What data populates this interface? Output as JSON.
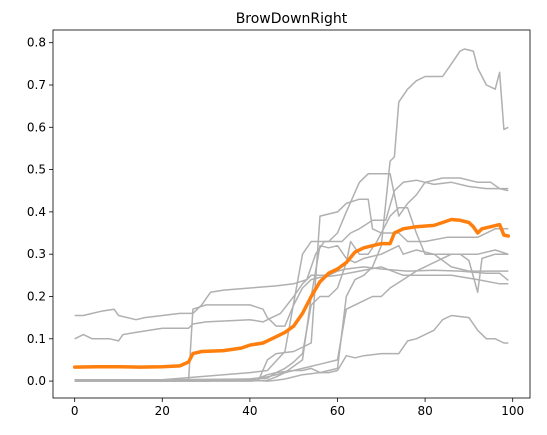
{
  "chart_data": {
    "type": "line",
    "title": "BrowDownRight",
    "xlabel": "",
    "ylabel": "",
    "xlim": [
      -4.95,
      103.95
    ],
    "ylim": [
      -0.04,
      0.83
    ],
    "xticks": [
      0,
      20,
      40,
      60,
      80,
      100
    ],
    "yticks": [
      0.0,
      0.1,
      0.2,
      0.3,
      0.4,
      0.5,
      0.6,
      0.7,
      0.8
    ],
    "grid": false,
    "legend": "none",
    "background_series_color": "#b0b0b0",
    "mean_series_color": "#ff7f0e",
    "background_series": [
      {
        "points": [
          [
            0,
            0.155
          ],
          [
            2,
            0.155
          ],
          [
            4,
            0.16
          ],
          [
            6,
            0.165
          ],
          [
            9,
            0.17
          ],
          [
            10,
            0.155
          ],
          [
            14,
            0.145
          ],
          [
            16,
            0.15
          ],
          [
            20,
            0.155
          ],
          [
            24,
            0.16
          ],
          [
            27,
            0.16
          ],
          [
            29,
            0.18
          ],
          [
            31,
            0.21
          ],
          [
            34,
            0.215
          ],
          [
            40,
            0.22
          ],
          [
            46,
            0.225
          ],
          [
            50,
            0.23
          ],
          [
            53,
            0.24
          ],
          [
            55,
            0.3
          ],
          [
            57,
            0.33
          ],
          [
            59,
            0.33
          ],
          [
            61,
            0.33
          ],
          [
            63,
            0.35
          ],
          [
            65,
            0.36
          ],
          [
            68,
            0.38
          ],
          [
            71,
            0.38
          ],
          [
            73,
            0.45
          ],
          [
            75,
            0.47
          ],
          [
            78,
            0.475
          ],
          [
            82,
            0.465
          ],
          [
            86,
            0.47
          ],
          [
            90,
            0.46
          ],
          [
            94,
            0.455
          ],
          [
            97,
            0.455
          ],
          [
            99,
            0.455
          ]
        ]
      },
      {
        "points": [
          [
            0,
            0.1
          ],
          [
            2,
            0.11
          ],
          [
            4,
            0.1
          ],
          [
            8,
            0.1
          ],
          [
            10,
            0.095
          ],
          [
            11,
            0.11
          ],
          [
            14,
            0.115
          ],
          [
            20,
            0.125
          ],
          [
            26,
            0.125
          ],
          [
            27,
            0.135
          ],
          [
            30,
            0.14
          ],
          [
            40,
            0.145
          ],
          [
            43,
            0.14
          ],
          [
            45,
            0.15
          ],
          [
            47,
            0.16
          ],
          [
            50,
            0.2
          ],
          [
            52,
            0.23
          ],
          [
            54,
            0.25
          ],
          [
            58,
            0.25
          ],
          [
            60,
            0.26
          ],
          [
            62,
            0.265
          ],
          [
            66,
            0.27
          ],
          [
            70,
            0.265
          ],
          [
            76,
            0.26
          ],
          [
            82,
            0.262
          ],
          [
            88,
            0.26
          ],
          [
            94,
            0.255
          ],
          [
            97,
            0.255
          ],
          [
            99,
            0.238
          ]
        ]
      },
      {
        "points": [
          [
            0,
            0.003
          ],
          [
            10,
            0.002
          ],
          [
            20,
            0.002
          ],
          [
            26,
            0.002
          ],
          [
            27,
            0.17
          ],
          [
            30,
            0.18
          ],
          [
            40,
            0.18
          ],
          [
            43,
            0.17
          ],
          [
            44,
            0.15
          ],
          [
            46,
            0.13
          ],
          [
            48,
            0.13
          ],
          [
            50,
            0.18
          ],
          [
            52,
            0.22
          ],
          [
            54,
            0.24
          ],
          [
            56,
            0.245
          ],
          [
            60,
            0.25
          ],
          [
            65,
            0.26
          ],
          [
            70,
            0.27
          ],
          [
            75,
            0.25
          ],
          [
            80,
            0.25
          ],
          [
            86,
            0.25
          ],
          [
            92,
            0.24
          ],
          [
            97,
            0.23
          ],
          [
            99,
            0.23
          ]
        ]
      },
      {
        "points": [
          [
            0,
            0.002
          ],
          [
            20,
            0.002
          ],
          [
            40,
            0.002
          ],
          [
            42,
            0.002
          ],
          [
            44,
            0.05
          ],
          [
            46,
            0.065
          ],
          [
            50,
            0.07
          ],
          [
            54,
            0.09
          ],
          [
            56,
            0.39
          ],
          [
            58,
            0.395
          ],
          [
            60,
            0.4
          ],
          [
            62,
            0.42
          ],
          [
            65,
            0.43
          ],
          [
            67,
            0.43
          ],
          [
            68,
            0.36
          ],
          [
            70,
            0.35
          ],
          [
            72,
            0.35
          ],
          [
            74,
            0.35
          ],
          [
            76,
            0.33
          ],
          [
            80,
            0.33
          ],
          [
            85,
            0.34
          ],
          [
            88,
            0.34
          ],
          [
            92,
            0.34
          ],
          [
            96,
            0.36
          ],
          [
            99,
            0.36
          ]
        ]
      },
      {
        "points": [
          [
            0,
            0.0
          ],
          [
            20,
            0.0
          ],
          [
            40,
            0.0
          ],
          [
            44,
            0.002
          ],
          [
            46,
            0.01
          ],
          [
            48,
            0.02
          ],
          [
            52,
            0.05
          ],
          [
            54,
            0.2
          ],
          [
            56,
            0.32
          ],
          [
            58,
            0.315
          ],
          [
            60,
            0.32
          ],
          [
            62,
            0.29
          ],
          [
            64,
            0.28
          ],
          [
            66,
            0.29
          ],
          [
            70,
            0.3
          ],
          [
            74,
            0.32
          ],
          [
            75,
            0.3
          ],
          [
            78,
            0.31
          ],
          [
            82,
            0.3
          ],
          [
            86,
            0.27
          ],
          [
            90,
            0.26
          ],
          [
            94,
            0.26
          ],
          [
            99,
            0.26
          ]
        ]
      },
      {
        "points": [
          [
            0,
            0.0
          ],
          [
            20,
            0.0
          ],
          [
            30,
            0.0
          ],
          [
            40,
            0.005
          ],
          [
            44,
            0.01
          ],
          [
            48,
            0.02
          ],
          [
            52,
            0.03
          ],
          [
            56,
            0.04
          ],
          [
            60,
            0.05
          ],
          [
            62,
            0.17
          ],
          [
            66,
            0.19
          ],
          [
            68,
            0.2
          ],
          [
            70,
            0.2
          ],
          [
            72,
            0.22
          ],
          [
            75,
            0.24
          ],
          [
            78,
            0.26
          ],
          [
            82,
            0.28
          ],
          [
            86,
            0.3
          ],
          [
            88,
            0.3
          ],
          [
            90,
            0.285
          ],
          [
            92,
            0.21
          ],
          [
            93,
            0.29
          ],
          [
            96,
            0.3
          ],
          [
            99,
            0.3
          ]
        ]
      },
      {
        "points": [
          [
            0,
            0.003
          ],
          [
            20,
            0.003
          ],
          [
            40,
            0.02
          ],
          [
            44,
            0.025
          ],
          [
            48,
            0.07
          ],
          [
            52,
            0.3
          ],
          [
            54,
            0.33
          ],
          [
            58,
            0.33
          ],
          [
            60,
            0.35
          ],
          [
            62,
            0.4
          ],
          [
            65,
            0.47
          ],
          [
            67,
            0.49
          ],
          [
            70,
            0.49
          ],
          [
            72,
            0.49
          ],
          [
            74,
            0.39
          ],
          [
            76,
            0.42
          ],
          [
            78,
            0.44
          ],
          [
            80,
            0.47
          ],
          [
            84,
            0.48
          ],
          [
            88,
            0.48
          ],
          [
            92,
            0.47
          ],
          [
            95,
            0.47
          ],
          [
            97,
            0.455
          ],
          [
            99,
            0.45
          ]
        ]
      },
      {
        "points": [
          [
            0,
            0.003
          ],
          [
            20,
            0.003
          ],
          [
            26,
            0.003
          ],
          [
            30,
            0.003
          ],
          [
            40,
            0.005
          ],
          [
            44,
            0.007
          ],
          [
            46,
            0.02
          ],
          [
            48,
            0.03
          ],
          [
            50,
            0.045
          ],
          [
            52,
            0.065
          ],
          [
            54,
            0.18
          ],
          [
            56,
            0.2
          ],
          [
            58,
            0.2
          ],
          [
            60,
            0.22
          ],
          [
            62,
            0.28
          ],
          [
            63,
            0.33
          ],
          [
            65,
            0.3
          ],
          [
            67,
            0.3
          ],
          [
            69,
            0.33
          ],
          [
            72,
            0.39
          ],
          [
            74,
            0.41
          ],
          [
            76,
            0.41
          ],
          [
            78,
            0.35
          ],
          [
            80,
            0.3
          ],
          [
            84,
            0.3
          ],
          [
            88,
            0.3
          ],
          [
            92,
            0.3
          ],
          [
            96,
            0.31
          ],
          [
            99,
            0.3
          ]
        ]
      },
      {
        "points": [
          [
            0,
            0.003
          ],
          [
            20,
            0.003
          ],
          [
            40,
            0.005
          ],
          [
            42,
            0.007
          ],
          [
            44,
            0.015
          ],
          [
            46,
            0.02
          ],
          [
            50,
            0.025
          ],
          [
            52,
            0.025
          ],
          [
            54,
            0.03
          ],
          [
            56,
            0.02
          ],
          [
            58,
            0.02
          ],
          [
            60,
            0.025
          ],
          [
            62,
            0.06
          ],
          [
            64,
            0.055
          ],
          [
            66,
            0.06
          ],
          [
            70,
            0.065
          ],
          [
            74,
            0.065
          ],
          [
            76,
            0.095
          ],
          [
            78,
            0.1
          ],
          [
            80,
            0.11
          ],
          [
            82,
            0.12
          ],
          [
            84,
            0.145
          ],
          [
            86,
            0.155
          ],
          [
            90,
            0.15
          ],
          [
            92,
            0.12
          ],
          [
            94,
            0.1
          ],
          [
            96,
            0.1
          ],
          [
            98,
            0.09
          ],
          [
            99,
            0.09
          ]
        ]
      },
      {
        "points": [
          [
            0,
            0.003
          ],
          [
            20,
            0.002
          ],
          [
            40,
            0.002
          ],
          [
            44,
            0.0
          ],
          [
            46,
            0.002
          ],
          [
            48,
            0.005
          ],
          [
            50,
            0.01
          ],
          [
            52,
            0.015
          ],
          [
            56,
            0.02
          ],
          [
            60,
            0.03
          ],
          [
            62,
            0.2
          ],
          [
            64,
            0.24
          ],
          [
            66,
            0.25
          ],
          [
            68,
            0.27
          ],
          [
            70,
            0.32
          ],
          [
            72,
            0.52
          ],
          [
            73,
            0.53
          ],
          [
            74,
            0.66
          ],
          [
            76,
            0.69
          ],
          [
            78,
            0.71
          ],
          [
            80,
            0.72
          ],
          [
            84,
            0.72
          ],
          [
            86,
            0.75
          ],
          [
            88,
            0.78
          ],
          [
            89,
            0.785
          ],
          [
            91,
            0.78
          ],
          [
            92,
            0.74
          ],
          [
            94,
            0.7
          ],
          [
            96,
            0.69
          ],
          [
            97,
            0.73
          ],
          [
            98,
            0.595
          ],
          [
            99,
            0.6
          ]
        ]
      }
    ],
    "mean_series": {
      "points": [
        [
          0,
          0.033
        ],
        [
          5,
          0.034
        ],
        [
          10,
          0.034
        ],
        [
          15,
          0.033
        ],
        [
          20,
          0.034
        ],
        [
          24,
          0.036
        ],
        [
          26,
          0.045
        ],
        [
          27,
          0.065
        ],
        [
          29,
          0.07
        ],
        [
          34,
          0.072
        ],
        [
          38,
          0.078
        ],
        [
          40,
          0.085
        ],
        [
          43,
          0.09
        ],
        [
          45,
          0.1
        ],
        [
          48,
          0.115
        ],
        [
          50,
          0.13
        ],
        [
          52,
          0.16
        ],
        [
          54,
          0.2
        ],
        [
          56,
          0.235
        ],
        [
          58,
          0.255
        ],
        [
          60,
          0.265
        ],
        [
          62,
          0.28
        ],
        [
          64,
          0.305
        ],
        [
          66,
          0.315
        ],
        [
          68,
          0.32
        ],
        [
          70,
          0.325
        ],
        [
          72,
          0.325
        ],
        [
          73,
          0.35
        ],
        [
          75,
          0.36
        ],
        [
          78,
          0.365
        ],
        [
          82,
          0.368
        ],
        [
          84,
          0.375
        ],
        [
          86,
          0.382
        ],
        [
          88,
          0.38
        ],
        [
          90,
          0.375
        ],
        [
          91,
          0.365
        ],
        [
          92,
          0.35
        ],
        [
          93,
          0.36
        ],
        [
          95,
          0.365
        ],
        [
          97,
          0.37
        ],
        [
          98,
          0.345
        ],
        [
          99,
          0.343
        ]
      ]
    }
  }
}
